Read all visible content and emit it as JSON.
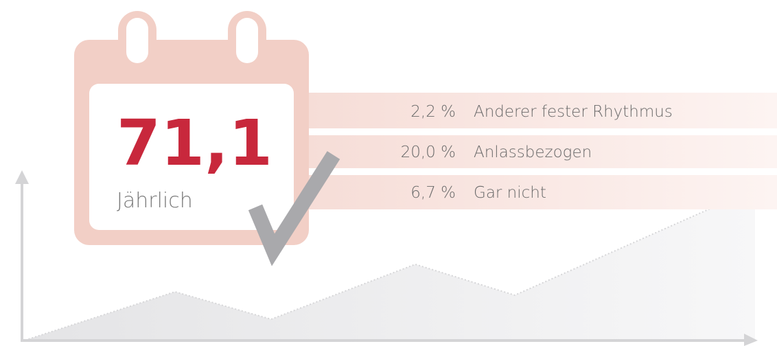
{
  "main": {
    "value": "71,1",
    "label": "Jährlich"
  },
  "items": [
    {
      "percent": "2,2 %",
      "label": "Anderer fester Rhythmus"
    },
    {
      "percent": "20,0 %",
      "label": "Anlassbezogen"
    },
    {
      "percent": "6,7 %",
      "label": "Gar nicht"
    }
  ]
}
